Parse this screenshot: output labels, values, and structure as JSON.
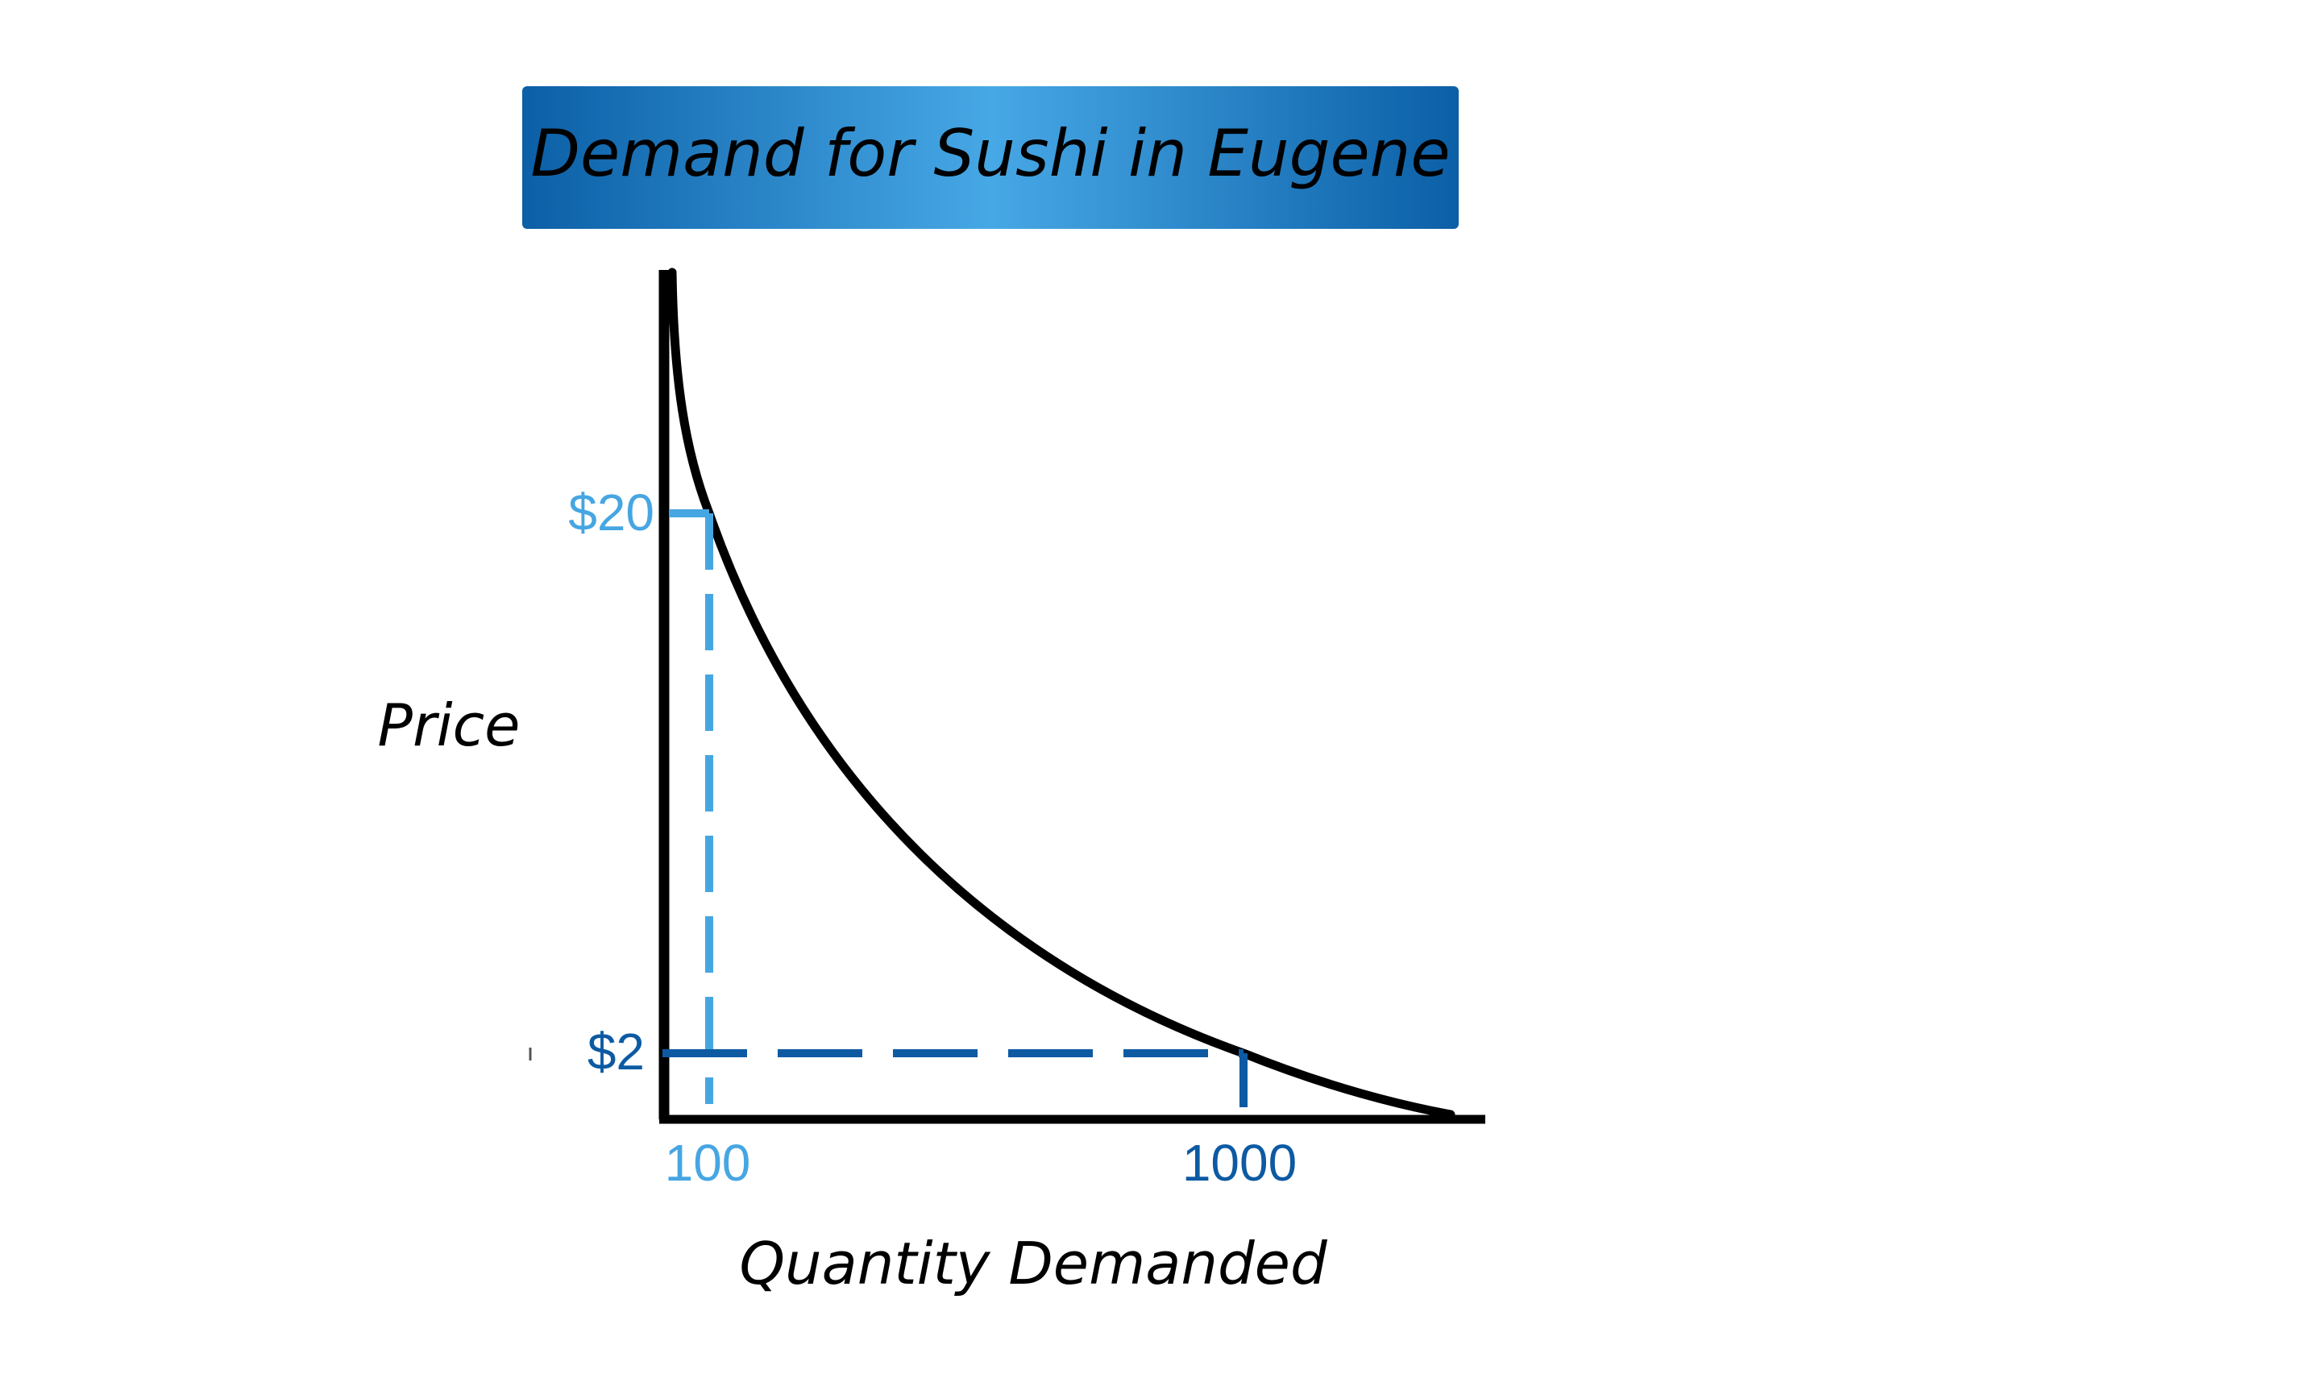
{
  "chart_data": {
    "type": "line",
    "title": "Demand for Sushi in Eugene",
    "xlabel": "Quantity Demanded",
    "ylabel": "Price",
    "series": [
      {
        "name": "",
        "color": "#000000",
        "shape": "convex downward-sloping demand curve",
        "points": [
          {
            "x": 100,
            "y": 20
          },
          {
            "x": 1000,
            "y": 2
          }
        ]
      }
    ],
    "highlighted_points": [
      {
        "x": 100,
        "y": 20,
        "x_label": "100",
        "y_label": "$20",
        "color": "#46a6e2"
      },
      {
        "x": 1000,
        "y": 2,
        "x_label": "1000",
        "y_label": "$2",
        "color": "#0d5aa3"
      }
    ],
    "grid": false,
    "legend": "none"
  },
  "colors": {
    "title_gradient_edge": "#0b5fa6",
    "title_gradient_center": "#47a8e6",
    "light_blue": "#46a6e2",
    "dark_blue": "#0d5aa3",
    "axis": "#000000"
  }
}
